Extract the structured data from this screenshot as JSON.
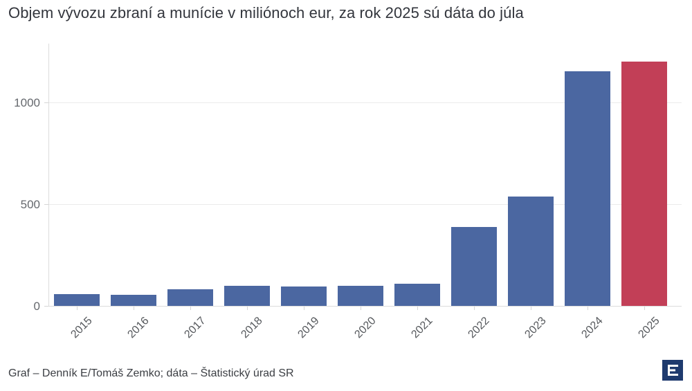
{
  "title": "Objem vývozu zbraní a munície v miliónoch eur, za rok 2025 sú dáta do júla",
  "footer": {
    "credit": "Graf – Denník E/Tomáš Zemko; dáta – Štatistický úrad SR",
    "logo_letter": "E"
  },
  "colors": {
    "bar_default": "#4b67a1",
    "bar_highlight": "#c23f57",
    "gridline": "#ebebeb",
    "axis": "#dcdcdc",
    "tick": "#d5d5d5",
    "y_label": "#65686d",
    "x_label": "#55585c",
    "title": "#32353c",
    "logo_bg": "#1e3a6e"
  },
  "chart_data": {
    "type": "bar",
    "title": "Objem vývozu zbraní a munície v miliónoch eur, za rok 2025 sú dáta do júla",
    "categories": [
      "2015",
      "2016",
      "2017",
      "2018",
      "2019",
      "2020",
      "2021",
      "2022",
      "2023",
      "2024",
      "2025"
    ],
    "values": [
      57,
      54,
      81,
      98,
      96,
      98,
      108,
      388,
      537,
      1153,
      1201
    ],
    "unit": "miliónov eur",
    "highlight_category": "2025",
    "xlabel": "",
    "ylabel": "",
    "yticks": [
      0,
      500,
      1000
    ],
    "ylim": [
      0,
      1290
    ],
    "grid": true,
    "legend": false
  }
}
